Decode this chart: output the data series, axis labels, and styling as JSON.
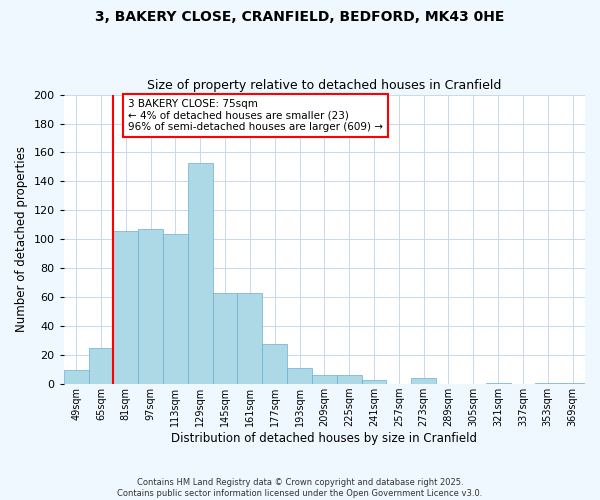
{
  "title1": "3, BAKERY CLOSE, CRANFIELD, BEDFORD, MK43 0HE",
  "title2": "Size of property relative to detached houses in Cranfield",
  "xlabel": "Distribution of detached houses by size in Cranfield",
  "ylabel": "Number of detached properties",
  "bin_labels": [
    "49sqm",
    "65sqm",
    "81sqm",
    "97sqm",
    "113sqm",
    "129sqm",
    "145sqm",
    "161sqm",
    "177sqm",
    "193sqm",
    "209sqm",
    "225sqm",
    "241sqm",
    "257sqm",
    "273sqm",
    "289sqm",
    "305sqm",
    "321sqm",
    "337sqm",
    "353sqm",
    "369sqm"
  ],
  "bar_values": [
    10,
    25,
    106,
    107,
    104,
    153,
    63,
    63,
    28,
    11,
    6,
    6,
    3,
    0,
    4,
    0,
    0,
    1,
    0,
    1,
    1
  ],
  "bar_color": "#add8e6",
  "bar_edge_color": "#6baed6",
  "vline_color": "red",
  "vline_x_index": 2,
  "annotation_title": "3 BAKERY CLOSE: 75sqm",
  "annotation_line1": "← 4% of detached houses are smaller (23)",
  "annotation_line2": "96% of semi-detached houses are larger (609) →",
  "ylim": [
    0,
    200
  ],
  "yticks": [
    0,
    20,
    40,
    60,
    80,
    100,
    120,
    140,
    160,
    180,
    200
  ],
  "footer1": "Contains HM Land Registry data © Crown copyright and database right 2025.",
  "footer2": "Contains public sector information licensed under the Open Government Licence v3.0.",
  "bg_color": "#f0f8ff",
  "plot_bg_color": "#ffffff",
  "grid_color": "#c8d8f0"
}
